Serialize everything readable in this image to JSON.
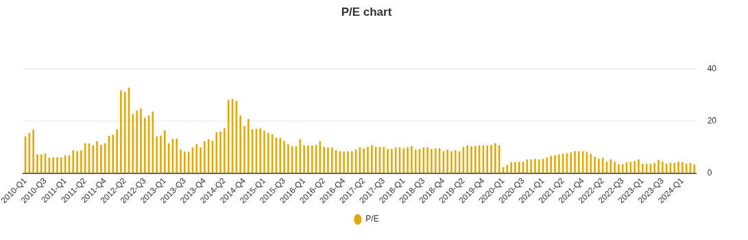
{
  "chart_data": {
    "type": "bar",
    "title": "P/E chart",
    "categories": [
      "2010-Q1",
      null,
      null,
      null,
      null,
      "2010-Q3",
      null,
      null,
      null,
      null,
      "2011-Q1",
      null,
      null,
      null,
      null,
      "2011-Q2",
      null,
      null,
      null,
      null,
      "2011-Q4",
      null,
      null,
      null,
      null,
      "2012-Q2",
      null,
      null,
      null,
      null,
      "2012-Q3",
      null,
      null,
      null,
      null,
      "2013-Q1",
      null,
      null,
      null,
      null,
      "2013-Q3",
      null,
      null,
      null,
      null,
      "2013-Q4",
      null,
      null,
      null,
      null,
      "2014-Q2",
      null,
      null,
      null,
      null,
      "2014-Q4",
      null,
      null,
      null,
      null,
      "2015-Q1",
      null,
      null,
      null,
      null,
      "2015-Q3",
      null,
      null,
      null,
      null,
      "2016-Q1",
      null,
      null,
      null,
      null,
      "2016-Q2",
      null,
      null,
      null,
      null,
      "2016-Q4",
      null,
      null,
      null,
      null,
      "2017-Q2",
      null,
      null,
      null,
      null,
      "2017-Q3",
      null,
      null,
      null,
      null,
      "2018-Q1",
      null,
      null,
      null,
      null,
      "2018-Q3",
      null,
      null,
      null,
      null,
      "2018-Q4",
      null,
      null,
      null,
      null,
      "2019-Q2",
      null,
      null,
      null,
      null,
      "2019-Q4",
      null,
      null,
      null,
      null,
      "2020-Q1",
      null,
      null,
      null,
      null,
      "2020-Q3",
      null,
      null,
      null,
      null,
      "2021-Q1",
      null,
      null,
      null,
      null,
      "2021-Q2",
      null,
      null,
      null,
      null,
      "2021-Q4",
      null,
      null,
      null,
      null,
      "2022-Q2",
      null,
      null,
      null,
      null,
      "2022-Q3",
      null,
      null,
      null,
      null,
      "2023-Q1",
      null,
      null,
      null,
      null,
      "2023-Q3",
      null,
      null,
      null,
      null,
      "2024-Q1",
      null,
      null,
      null
    ],
    "series": [
      {
        "name": "P/E",
        "color": "#e0a800",
        "values": [
          14.1,
          15.5,
          16.8,
          7.2,
          7.2,
          7.7,
          5.9,
          6.1,
          6.1,
          6.1,
          6.9,
          6.9,
          8.8,
          8.5,
          8.8,
          11.5,
          11.5,
          10.7,
          12.3,
          10.9,
          11.5,
          14.4,
          14.7,
          16.8,
          31.7,
          31.2,
          32.8,
          22.6,
          24.0,
          24.8,
          21.3,
          22.1,
          23.7,
          14.1,
          14.4,
          16.5,
          11.5,
          13.3,
          13.3,
          9.1,
          8.3,
          8.3,
          9.9,
          11.2,
          9.9,
          12.3,
          13.1,
          12.5,
          15.7,
          16.0,
          17.3,
          28.0,
          28.5,
          27.7,
          22.1,
          18.1,
          20.8,
          16.8,
          17.1,
          17.3,
          16.3,
          15.5,
          14.9,
          13.6,
          13.6,
          12.5,
          11.2,
          10.4,
          10.4,
          13.1,
          10.7,
          10.7,
          10.7,
          10.9,
          12.3,
          10.1,
          9.9,
          9.9,
          8.8,
          8.5,
          8.3,
          8.5,
          8.5,
          9.1,
          9.9,
          9.6,
          10.1,
          10.7,
          10.1,
          10.1,
          10.1,
          9.3,
          9.3,
          9.9,
          9.9,
          9.6,
          9.9,
          10.4,
          9.1,
          9.3,
          9.9,
          9.9,
          9.3,
          9.6,
          9.6,
          8.5,
          9.1,
          8.5,
          8.8,
          8.5,
          10.1,
          10.7,
          10.4,
          10.4,
          10.7,
          10.7,
          10.7,
          10.9,
          11.5,
          10.7,
          2.4,
          3.2,
          4.3,
          4.3,
          4.5,
          4.5,
          5.3,
          5.3,
          5.6,
          5.3,
          5.6,
          6.1,
          6.7,
          6.9,
          7.2,
          7.5,
          7.7,
          8.0,
          8.5,
          8.5,
          8.5,
          8.3,
          7.5,
          6.4,
          5.6,
          5.9,
          4.5,
          5.3,
          4.5,
          3.5,
          3.5,
          4.3,
          4.5,
          4.8,
          5.3,
          3.7,
          3.7,
          3.7,
          4.0,
          5.1,
          4.5,
          3.7,
          4.0,
          4.0,
          4.5,
          4.3,
          3.7,
          4.0,
          3.5
        ]
      }
    ],
    "ylim": [
      0,
      40
    ],
    "yticks": [
      0,
      20,
      40
    ],
    "grid": "y",
    "legend": "bottom",
    "marker": "circle"
  }
}
